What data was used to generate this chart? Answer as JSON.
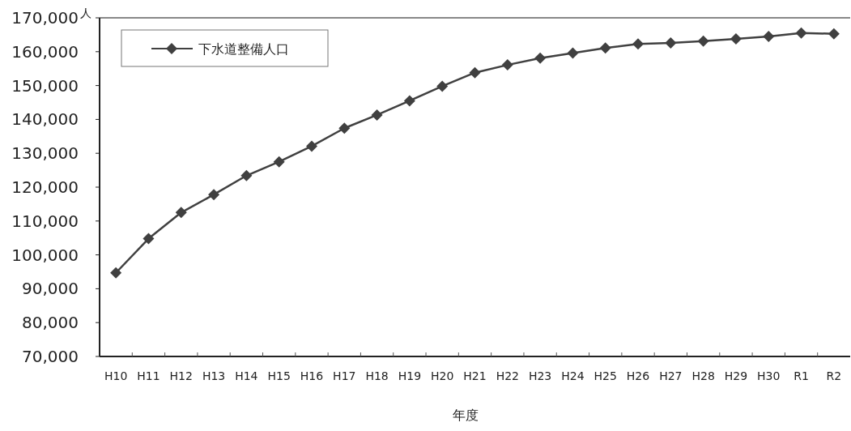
{
  "chart_data": {
    "type": "line",
    "xlabel": "年度",
    "ylabel": "人",
    "categories": [
      "H10",
      "H11",
      "H12",
      "H13",
      "H14",
      "H15",
      "H16",
      "H17",
      "H18",
      "H19",
      "H20",
      "H21",
      "H22",
      "H23",
      "H24",
      "H25",
      "H26",
      "H27",
      "H28",
      "H29",
      "H30",
      "R1",
      "R2"
    ],
    "series": [
      {
        "name": "下水道整備人口",
        "color": "#404040",
        "values": [
          94700,
          104800,
          112500,
          117800,
          123400,
          127500,
          132100,
          137400,
          141300,
          145500,
          149800,
          153800,
          156100,
          158100,
          159600,
          161100,
          162300,
          162600,
          163100,
          163800,
          164500,
          165500,
          165300
        ]
      }
    ],
    "ylim": [
      70000,
      170000
    ],
    "yticks": [
      {
        "value": 70000,
        "label": "70,000"
      },
      {
        "value": 80000,
        "label": "80,000"
      },
      {
        "value": 90000,
        "label": "90,000"
      },
      {
        "value": 100000,
        "label": "100,000"
      },
      {
        "value": 110000,
        "label": "110,000"
      },
      {
        "value": 120000,
        "label": "120,000"
      },
      {
        "value": 130000,
        "label": "130,000"
      },
      {
        "value": 140000,
        "label": "140,000"
      },
      {
        "value": 150000,
        "label": "150,000"
      },
      {
        "value": 160000,
        "label": "160,000"
      },
      {
        "value": 170000,
        "label": "170,000"
      }
    ],
    "legend": "top left",
    "marker": "diamond",
    "line_style": "solid",
    "grid": false
  }
}
